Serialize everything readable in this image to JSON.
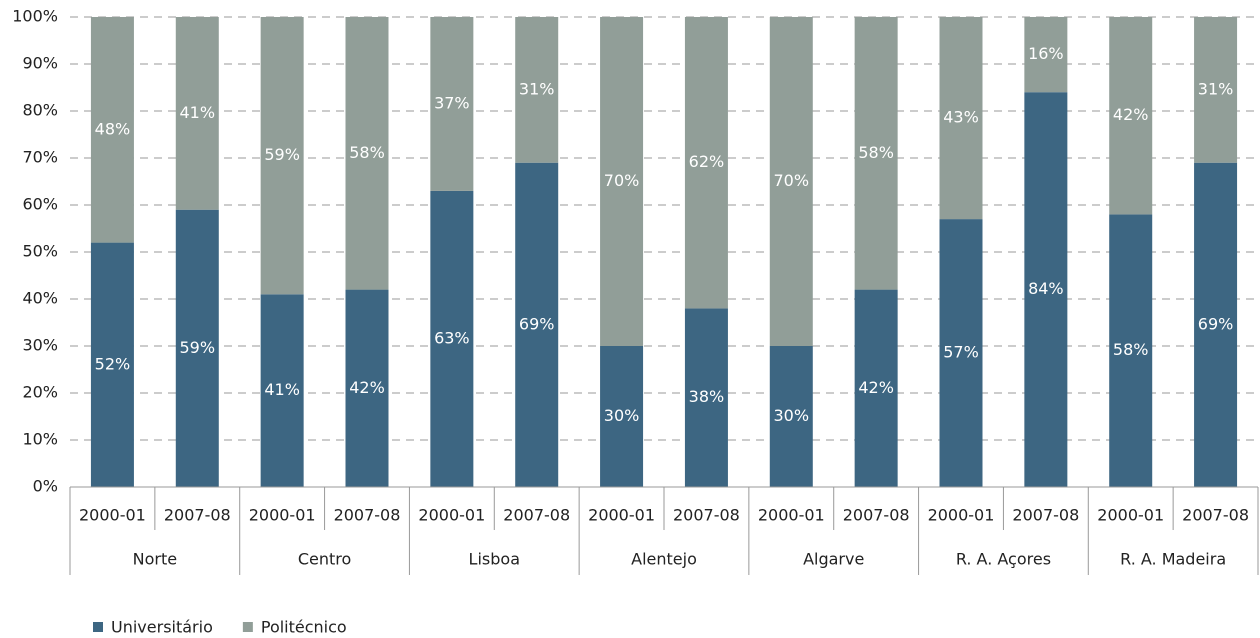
{
  "chart_data": {
    "type": "stacked_bar",
    "categories": [
      "2000-01",
      "2007-08",
      "2000-01",
      "2007-08",
      "2000-01",
      "2007-08",
      "2000-01",
      "2007-08",
      "2000-01",
      "2007-08",
      "2000-01",
      "2007-08",
      "2000-01",
      "2007-08"
    ],
    "groups": [
      "Norte",
      "Centro",
      "Lisboa",
      "Alentejo",
      "Algarve",
      "R. A. Açores",
      "R. A. Madeira"
    ],
    "series": [
      {
        "name": "Universitário",
        "color": "#3d6682",
        "values": [
          52,
          59,
          41,
          42,
          63,
          69,
          30,
          38,
          30,
          42,
          57,
          84,
          58,
          69
        ],
        "value_labels": [
          "52%",
          "59%",
          "41%",
          "42%",
          "63%",
          "69%",
          "30%",
          "38%",
          "30%",
          "42%",
          "57%",
          "84%",
          "58%",
          "69%"
        ]
      },
      {
        "name": "Politécnico",
        "color": "#919e98",
        "values": [
          48,
          41,
          59,
          58,
          37,
          31,
          70,
          62,
          70,
          58,
          43,
          16,
          42,
          31
        ],
        "value_labels": [
          "48%",
          "41%",
          "59%",
          "58%",
          "37%",
          "31%",
          "70%",
          "62%",
          "70%",
          "58%",
          "43%",
          "16%",
          "42%",
          "31%"
        ]
      }
    ],
    "ylim": [
      0,
      100
    ],
    "yticks": [
      {
        "value": 0,
        "label": "0%"
      },
      {
        "value": 10,
        "label": "10%"
      },
      {
        "value": 20,
        "label": "20%"
      },
      {
        "value": 30,
        "label": "30%"
      },
      {
        "value": 40,
        "label": "40%"
      },
      {
        "value": 50,
        "label": "50%"
      },
      {
        "value": 60,
        "label": "60%"
      },
      {
        "value": 70,
        "label": "70%"
      },
      {
        "value": 80,
        "label": "80%"
      },
      {
        "value": 90,
        "label": "90%"
      },
      {
        "value": 100,
        "label": "100%"
      }
    ],
    "grid": true,
    "legend": "bottom-left"
  }
}
